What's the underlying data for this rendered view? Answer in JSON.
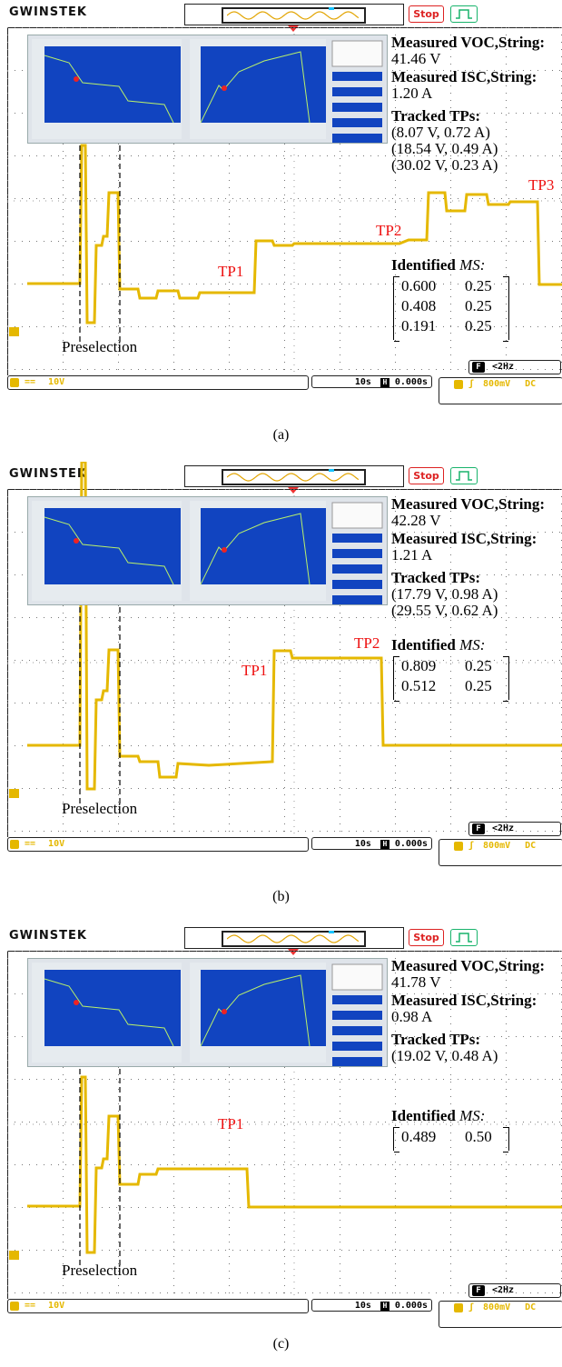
{
  "logo": "GWINSTEK",
  "stop_label": "Stop",
  "channel": "10V",
  "time": "10s",
  "offset": "0.000s",
  "trigger": "800mV",
  "coupling": "DC",
  "freq": "<2Hz",
  "preselection": "Preselection",
  "captions": [
    "(a)",
    "(b)",
    "(c)"
  ],
  "panels": [
    {
      "voc": "41.46 V",
      "isc": "1.20 A",
      "tracked": [
        "(8.07 V, 0.72 A)",
        "(18.54 V, 0.49 A)",
        "(30.02 V, 0.23 A)"
      ],
      "ms_label": "Identified",
      "ms": [
        [
          "0.600",
          "0.25"
        ],
        [
          "0.408",
          "0.25"
        ],
        [
          "0.191",
          "0.25"
        ]
      ],
      "tp_labels": [
        "TP1",
        "TP2",
        "TP3"
      ]
    },
    {
      "voc": "42.28 V",
      "isc": "1.21 A",
      "tracked": [
        "(17.79 V, 0.98 A)",
        "(29.55 V, 0.62 A)"
      ],
      "ms_label": "Identified",
      "ms": [
        [
          "0.809",
          "0.25"
        ],
        [
          "0.512",
          "0.25"
        ]
      ],
      "tp_labels": [
        "TP1",
        "TP2"
      ]
    },
    {
      "voc": "41.78 V",
      "isc": "0.98 A",
      "tracked": [
        "(19.02 V, 0.48 A)"
      ],
      "ms_label": "Identified",
      "ms": [
        [
          "0.489",
          "0.50"
        ]
      ],
      "tp_labels": [
        "TP1"
      ]
    }
  ]
}
